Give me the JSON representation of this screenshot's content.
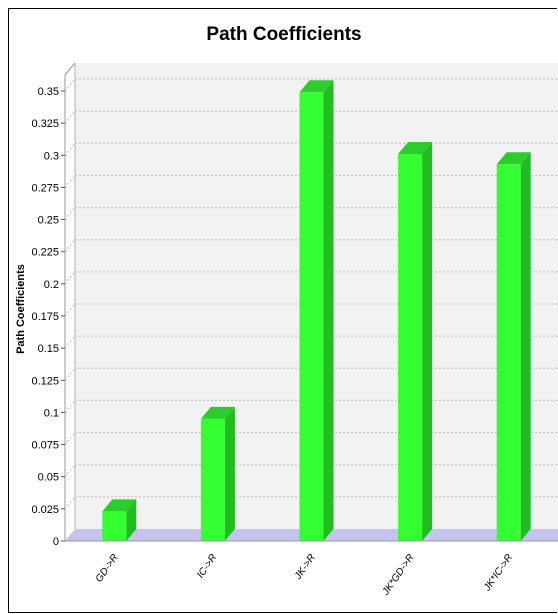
{
  "chart_data": {
    "type": "bar",
    "title": "Path Coefficients",
    "xlabel": "",
    "ylabel": "Path Coefficients",
    "categories": [
      "GD->R",
      "IC->R",
      "JK->R",
      "JK*GD->R",
      "JK*IC->R"
    ],
    "values": [
      0.023,
      0.095,
      0.349,
      0.301,
      0.293
    ],
    "ylim": [
      0,
      0.35
    ],
    "yticks": [
      0,
      0.025,
      0.05,
      0.075,
      0.1,
      0.125,
      0.15,
      0.175,
      0.2,
      0.225,
      0.25,
      0.275,
      0.3,
      0.325,
      0.35
    ],
    "ytick_labels": [
      "0",
      "0.025",
      "0.05",
      "0.075",
      "0.1",
      "0.125",
      "0.15",
      "0.175",
      "0.2",
      "0.225",
      "0.25",
      "0.275",
      "0.3",
      "0.325",
      "0.35"
    ],
    "grid": true,
    "colors": {
      "bar_front": "#33ff33",
      "bar_side": "#22bb22",
      "bar_top": "#2ccc2c",
      "floor": "#c4c4ee",
      "wall": "#f2f2f2",
      "grid": "#bdbdbd"
    }
  }
}
